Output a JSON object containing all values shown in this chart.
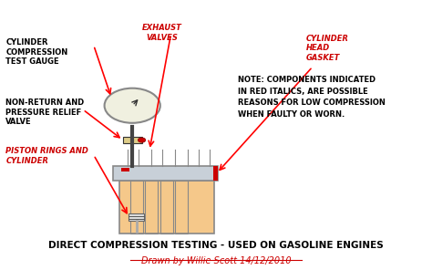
{
  "bg_color": "#ffffff",
  "title": "DIRECT COMPRESSION TESTING - USED ON GASOLINE ENGINES",
  "subtitle": "Drawn by Willie Scott 14/12/2010",
  "subtitle_color": "#cc0000",
  "title_fontsize": 7.5,
  "subtitle_fontsize": 7,
  "note_text": "NOTE: COMPONENTS INDICATED\nIN RED ITALICS, ARE POSSIBLE\nREASONS FOR LOW COMPRESSION\nWHEN FAULTY OR WORN.",
  "labels": {
    "cylinder_compression": {
      "text": "CYLINDER\nCOMPRESSION\nTEST GAUGE",
      "color": "#000000"
    },
    "exhaust_valves": {
      "text": "EXHAUST\nVALVES",
      "color": "#cc0000"
    },
    "non_return": {
      "text": "NON-RETURN AND\nPRESSURE RELIEF\nVALVE",
      "color": "#000000"
    },
    "cylinder_head": {
      "text": "CYLINDER\nHEAD\nGASKET",
      "color": "#cc0000"
    },
    "piston_rings": {
      "text": "PISTON RINGS AND\nCYLINDER",
      "color": "#cc0000"
    }
  },
  "engine_colors": {
    "cylinder_block": "#f5c88a",
    "cylinder_block_border": "#888888",
    "head": "#c8d0d8",
    "head_border": "#888888",
    "valve_stem": "#888888",
    "gauge_face": "#f0f0e0",
    "gauge_border": "#888888",
    "red_mark": "#cc0000",
    "piston": "#dddddd",
    "rod": "#aaaaaa"
  }
}
